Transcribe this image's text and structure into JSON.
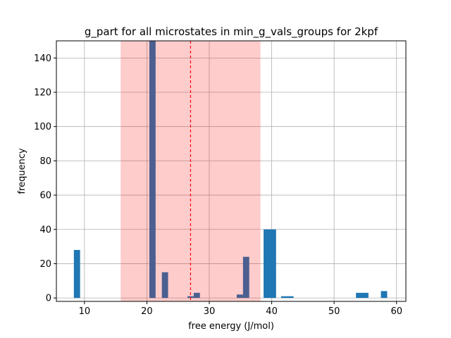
{
  "chart_data": {
    "type": "bar",
    "title": "g_part for all microstates in min_g_vals_groups for 2kpf",
    "xlabel": "free energy (J/mol)",
    "ylabel": "frequency",
    "xlim": [
      5.5,
      61.5
    ],
    "ylim": [
      -2,
      150
    ],
    "xticks": [
      10,
      20,
      30,
      40,
      50,
      60
    ],
    "yticks": [
      0,
      20,
      40,
      60,
      80,
      100,
      120,
      140
    ],
    "grid": true,
    "bar_color": "#1f77b4",
    "bars": [
      {
        "x0": 8.3,
        "x1": 9.3,
        "value": 28
      },
      {
        "x0": 20.4,
        "x1": 21.4,
        "value": 150
      },
      {
        "x0": 22.4,
        "x1": 23.4,
        "value": 15
      },
      {
        "x0": 26.5,
        "x1": 27.5,
        "value": 1
      },
      {
        "x0": 27.5,
        "x1": 28.5,
        "value": 3
      },
      {
        "x0": 34.4,
        "x1": 35.4,
        "value": 2
      },
      {
        "x0": 35.4,
        "x1": 36.4,
        "value": 24
      },
      {
        "x0": 38.7,
        "x1": 40.7,
        "value": 40
      },
      {
        "x0": 41.5,
        "x1": 43.5,
        "value": 1
      },
      {
        "x0": 53.5,
        "x1": 55.5,
        "value": 3
      },
      {
        "x0": 57.5,
        "x1": 58.5,
        "value": 4
      }
    ],
    "shaded_region": {
      "x0": 15.8,
      "x1": 38.2,
      "color": "#ff0000",
      "opacity": 0.2
    },
    "vline": {
      "x": 27.0,
      "color": "#ff0000",
      "style": "dashed"
    }
  }
}
